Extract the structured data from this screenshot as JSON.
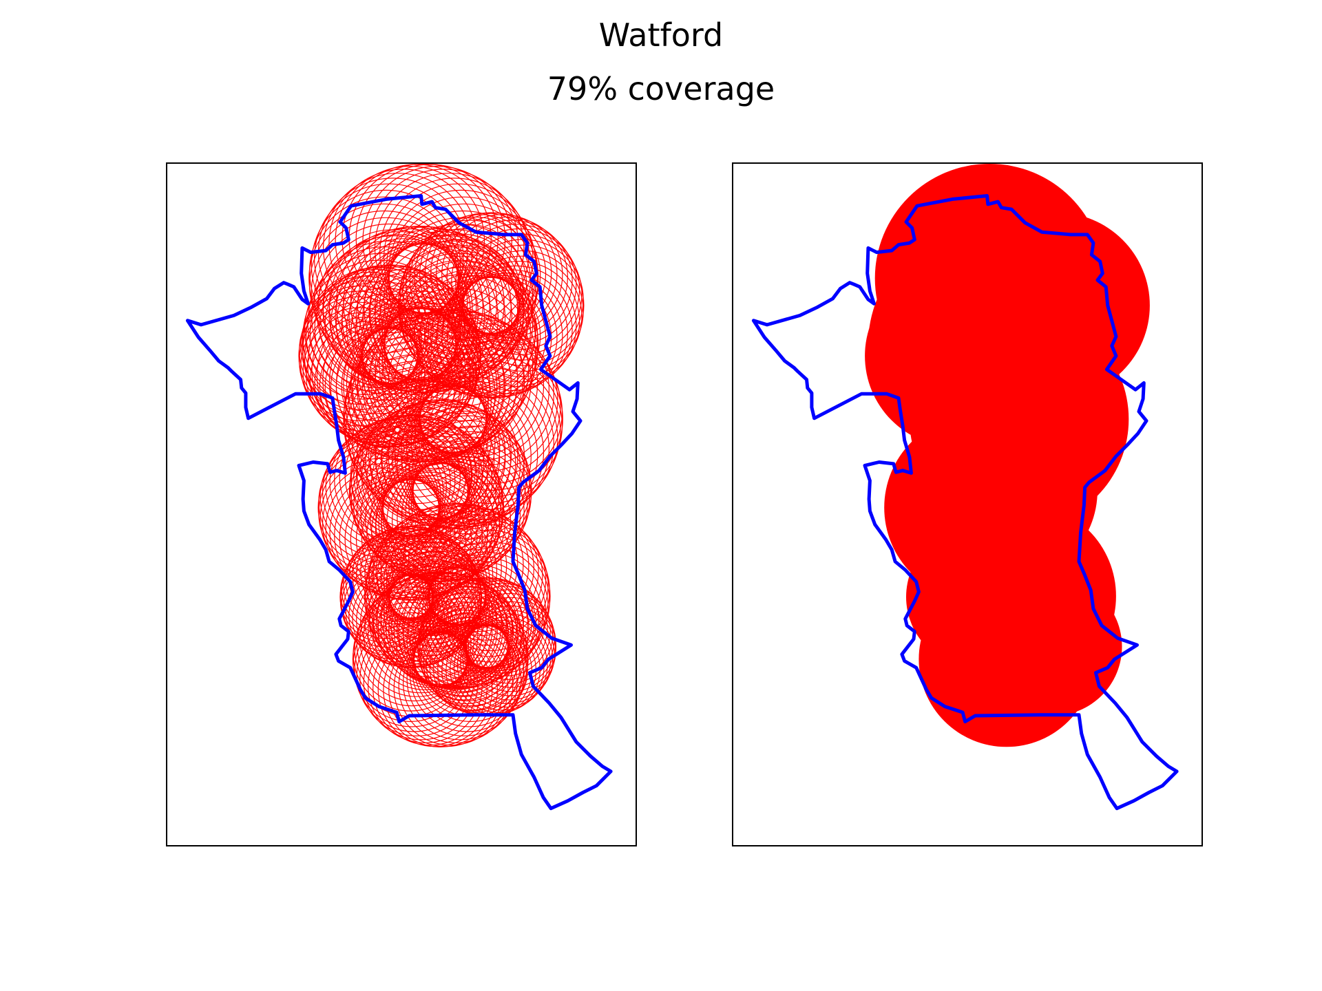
{
  "figure": {
    "title": "Watford",
    "subtitle": "79% coverage"
  },
  "colors": {
    "boundary": "#0000ff",
    "coverage": "#ff0000",
    "frame": "#000000",
    "background": "#ffffff"
  },
  "panels": [
    {
      "id": "left",
      "style": "circle-outlines"
    },
    {
      "id": "right",
      "style": "filled-union"
    }
  ]
}
